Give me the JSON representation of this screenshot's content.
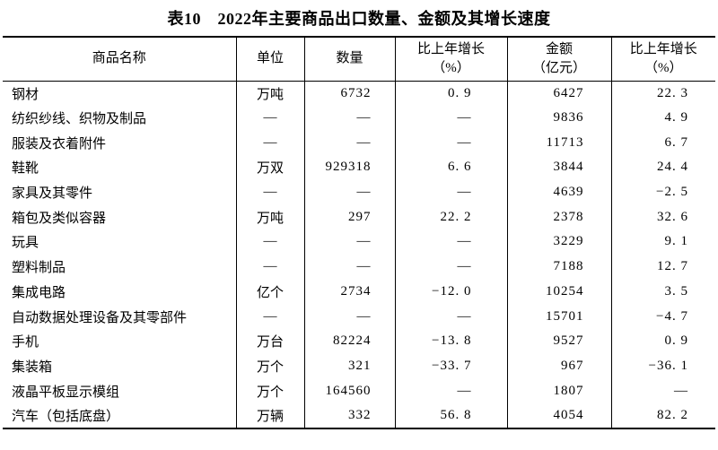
{
  "title": "表10　2022年主要商品出口数量、金额及其增长速度",
  "table": {
    "columns": [
      {
        "label": "商品名称",
        "sub": ""
      },
      {
        "label": "单位",
        "sub": ""
      },
      {
        "label": "数量",
        "sub": ""
      },
      {
        "label": "比上年增长",
        "sub": "（%）"
      },
      {
        "label": "金额",
        "sub": "（亿元）"
      },
      {
        "label": "比上年增长",
        "sub": "（%）"
      }
    ],
    "rows": [
      [
        "钢材",
        "万吨",
        "6732",
        "0. 9",
        "6427",
        "22. 3"
      ],
      [
        "纺织纱线、织物及制品",
        "—",
        "—",
        "—",
        "9836",
        "4. 9"
      ],
      [
        "服装及衣着附件",
        "—",
        "—",
        "—",
        "11713",
        "6. 7"
      ],
      [
        "鞋靴",
        "万双",
        "929318",
        "6. 6",
        "3844",
        "24. 4"
      ],
      [
        "家具及其零件",
        "—",
        "—",
        "—",
        "4639",
        "−2. 5"
      ],
      [
        "箱包及类似容器",
        "万吨",
        "297",
        "22. 2",
        "2378",
        "32. 6"
      ],
      [
        "玩具",
        "—",
        "—",
        "—",
        "3229",
        "9. 1"
      ],
      [
        "塑料制品",
        "—",
        "—",
        "—",
        "7188",
        "12. 7"
      ],
      [
        "集成电路",
        "亿个",
        "2734",
        "−12. 0",
        "10254",
        "3. 5"
      ],
      [
        "自动数据处理设备及其零部件",
        "—",
        "—",
        "—",
        "15701",
        "−4. 7"
      ],
      [
        "手机",
        "万台",
        "82224",
        "−13. 8",
        "9527",
        "0. 9"
      ],
      [
        "集装箱",
        "万个",
        "321",
        "−33. 7",
        "967",
        "−36. 1"
      ],
      [
        "液晶平板显示模组",
        "万个",
        "164560",
        "—",
        "1807",
        "—"
      ],
      [
        "汽车（包括底盘）",
        "万辆",
        "332",
        "56. 8",
        "4054",
        "82. 2"
      ]
    ]
  },
  "colors": {
    "text": "#000000",
    "border": "#000000",
    "background": "#ffffff"
  }
}
